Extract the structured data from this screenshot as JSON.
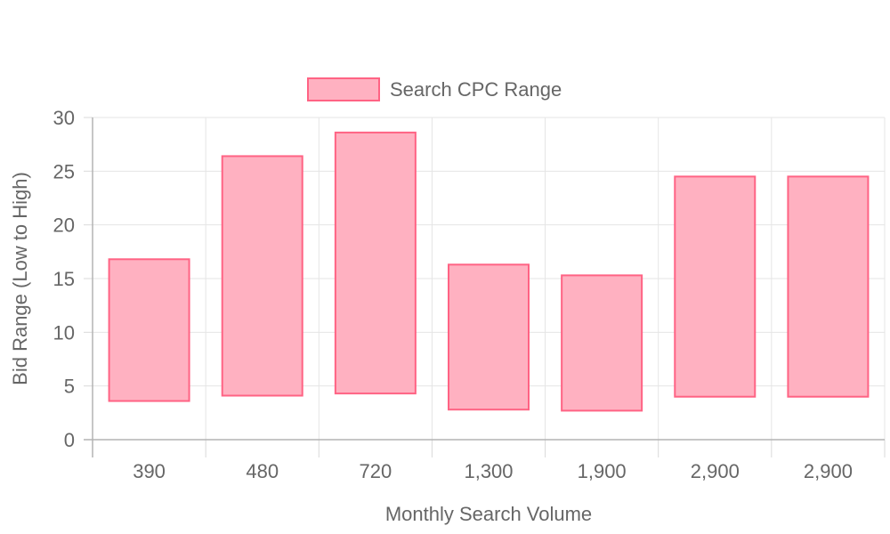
{
  "chart_data": {
    "type": "bar",
    "subtype": "floating-range",
    "categories": [
      "390",
      "480",
      "720",
      "1,300",
      "1,900",
      "2,900",
      "2,900"
    ],
    "series": [
      {
        "name": "Search CPC Range",
        "ranges": [
          [
            3.6,
            16.8
          ],
          [
            4.1,
            26.4
          ],
          [
            4.3,
            28.6
          ],
          [
            2.8,
            16.3
          ],
          [
            2.7,
            15.3
          ],
          [
            4.0,
            24.5
          ],
          [
            4.0,
            24.5
          ]
        ],
        "fill_color": "#ffb1c1",
        "border_color": "#ff6384"
      }
    ],
    "xlabel": "Monthly Search Volume",
    "ylabel": "Bid Range (Low to High)",
    "ylim": [
      0,
      30
    ],
    "yticks": [
      "0",
      "5",
      "10",
      "15",
      "20",
      "25",
      "30"
    ],
    "grid": true,
    "legend_position": "top"
  }
}
